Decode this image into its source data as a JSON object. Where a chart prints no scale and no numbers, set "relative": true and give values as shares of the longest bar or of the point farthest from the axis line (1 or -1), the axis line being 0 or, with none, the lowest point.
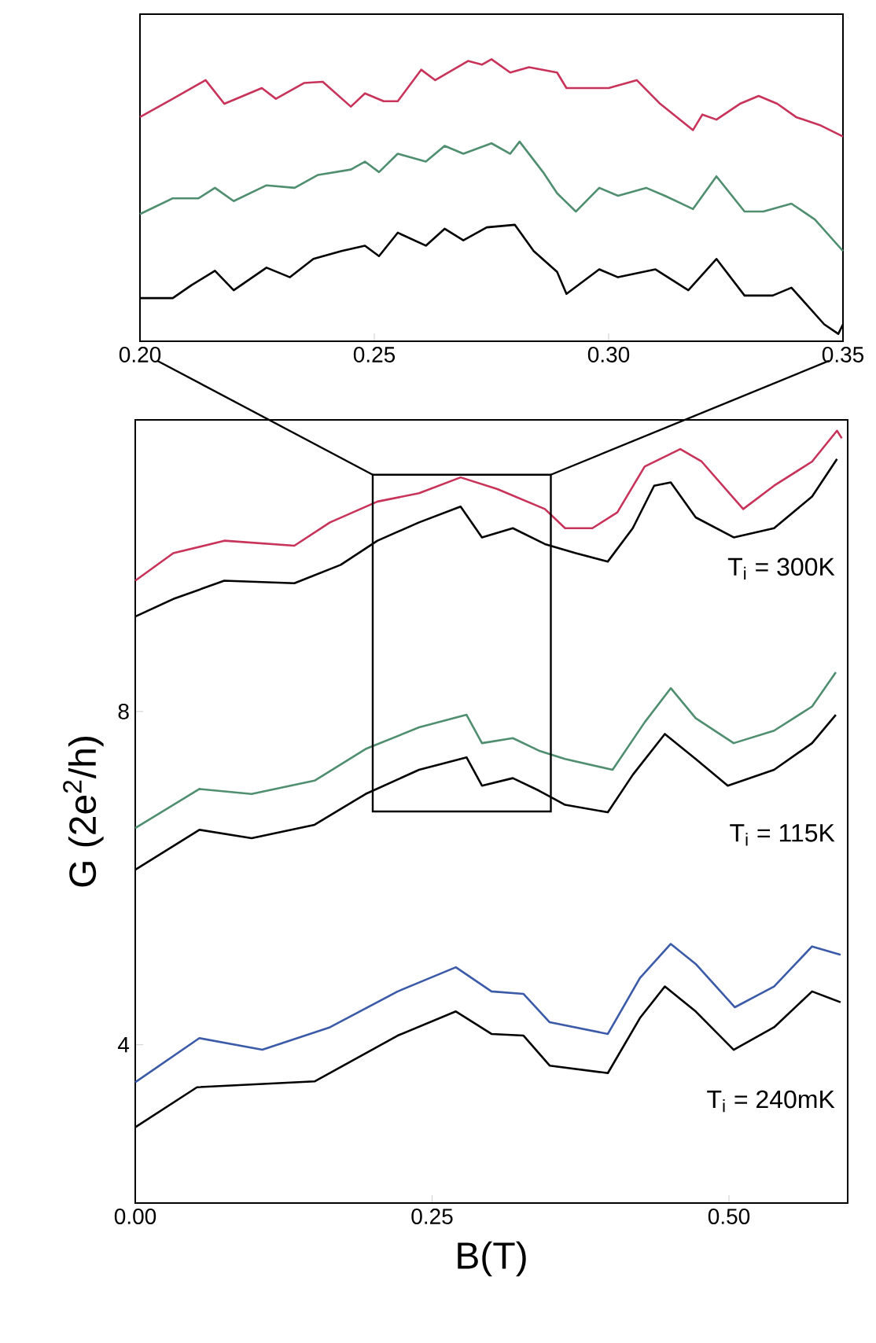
{
  "chart_data": [
    {
      "type": "line",
      "relative": true,
      "xlim": [
        0.2,
        0.35
      ],
      "xticks": [
        {
          "value": 0.2,
          "label": "0.20"
        },
        0.25,
        {
          "value": 0.3,
          "label": "0.30"
        },
        {
          "value": 0.35,
          "label": "0.35"
        }
      ],
      "series": [
        {
          "color": "#c8335a",
          "x": [
            0.2,
            0.207,
            0.214,
            0.218,
            0.226,
            0.229,
            0.235,
            0.239,
            0.245,
            0.248,
            0.252,
            0.255,
            0.26,
            0.263,
            0.27,
            0.273,
            0.275,
            0.279,
            0.283,
            0.289,
            0.291,
            0.295,
            0.3,
            0.306,
            0.311,
            0.318,
            0.32,
            0.323,
            0.328,
            0.332,
            0.336,
            0.34,
            0.345,
            0.35
          ],
          "values": [
            0.795,
            0.86,
            0.926,
            0.842,
            0.898,
            0.86,
            0.916,
            0.92,
            0.832,
            0.879,
            0.851,
            0.851,
            0.963,
            0.926,
            0.994,
            0.981,
            1.0,
            0.953,
            0.972,
            0.953,
            0.898,
            0.898,
            0.898,
            0.926,
            0.842,
            0.749,
            0.804,
            0.786,
            0.842,
            0.87,
            0.842,
            0.795,
            0.767,
            0.726
          ]
        },
        {
          "color": "#4f8f6f",
          "x": [
            0.2,
            0.207,
            0.2125,
            0.216,
            0.22,
            0.227,
            0.233,
            0.238,
            0.245,
            0.248,
            0.251,
            0.255,
            0.261,
            0.265,
            0.269,
            0.275,
            0.279,
            0.281,
            0.286,
            0.289,
            0.293,
            0.298,
            0.302,
            0.308,
            0.312,
            0.318,
            0.323,
            0.329,
            0.333,
            0.339,
            0.344,
            0.35
          ],
          "values": [
            0.451,
            0.507,
            0.507,
            0.544,
            0.497,
            0.553,
            0.544,
            0.59,
            0.609,
            0.637,
            0.6,
            0.665,
            0.637,
            0.693,
            0.665,
            0.702,
            0.665,
            0.708,
            0.6,
            0.525,
            0.46,
            0.544,
            0.516,
            0.544,
            0.516,
            0.469,
            0.585,
            0.46,
            0.46,
            0.488,
            0.432,
            0.32
          ]
        },
        {
          "color": "#000000",
          "x": [
            0.2,
            0.207,
            0.211,
            0.216,
            0.22,
            0.227,
            0.232,
            0.237,
            0.243,
            0.248,
            0.251,
            0.255,
            0.261,
            0.265,
            0.269,
            0.274,
            0.28,
            0.284,
            0.289,
            0.291,
            0.298,
            0.302,
            0.31,
            0.317,
            0.323,
            0.329,
            0.335,
            0.339,
            0.346,
            0.349,
            0.35
          ],
          "values": [
            0.153,
            0.153,
            0.199,
            0.25,
            0.181,
            0.261,
            0.227,
            0.292,
            0.32,
            0.339,
            0.302,
            0.385,
            0.339,
            0.399,
            0.358,
            0.404,
            0.413,
            0.32,
            0.246,
            0.168,
            0.255,
            0.227,
            0.255,
            0.181,
            0.292,
            0.162,
            0.162,
            0.19,
            0.06,
            0.026,
            0.06
          ]
        }
      ]
    },
    {
      "type": "line",
      "xlabel": "B(T)",
      "ylabel": "G (2e$^{2}$/h)",
      "xlim": [
        0,
        0.6
      ],
      "ylim": [
        2.1,
        11.5
      ],
      "xticks": [
        {
          "value": 0,
          "label": "0.00"
        },
        0.25,
        {
          "value": 0.5,
          "label": "0.50"
        }
      ],
      "yticks": [
        4,
        8
      ],
      "annotations": [
        "T$_{i}$ = 300K",
        "T$_{i}$ = 115K",
        "T$_{i}$ = 240mK"
      ],
      "series": [
        {
          "color": "#c8335a",
          "x": [
            0.0,
            0.032,
            0.075,
            0.134,
            0.164,
            0.204,
            0.239,
            0.274,
            0.305,
            0.345,
            0.362,
            0.385,
            0.406,
            0.429,
            0.459,
            0.477,
            0.512,
            0.538,
            0.57,
            0.591,
            0.595
          ],
          "values": [
            9.57,
            9.9,
            10.05,
            9.99,
            10.27,
            10.52,
            10.62,
            10.81,
            10.67,
            10.43,
            10.2,
            10.2,
            10.39,
            10.94,
            11.15,
            11.0,
            10.43,
            10.71,
            11.0,
            11.37,
            11.28
          ]
        },
        {
          "color": "#000000",
          "x": [
            0.0,
            0.032,
            0.075,
            0.134,
            0.173,
            0.204,
            0.239,
            0.274,
            0.292,
            0.318,
            0.345,
            0.371,
            0.398,
            0.419,
            0.437,
            0.451,
            0.472,
            0.504,
            0.538,
            0.57,
            0.591
          ],
          "values": [
            9.14,
            9.35,
            9.57,
            9.54,
            9.76,
            10.05,
            10.27,
            10.46,
            10.09,
            10.2,
            10.01,
            9.9,
            9.8,
            10.2,
            10.71,
            10.75,
            10.33,
            10.09,
            10.2,
            10.58,
            11.03
          ]
        },
        {
          "color": "#4f8f6f",
          "x": [
            0.0,
            0.054,
            0.098,
            0.151,
            0.194,
            0.239,
            0.279,
            0.292,
            0.318,
            0.34,
            0.362,
            0.402,
            0.429,
            0.451,
            0.472,
            0.504,
            0.538,
            0.57,
            0.59
          ],
          "values": [
            6.6,
            7.07,
            7.01,
            7.17,
            7.55,
            7.81,
            7.96,
            7.62,
            7.68,
            7.53,
            7.43,
            7.3,
            7.87,
            8.28,
            7.92,
            7.62,
            7.77,
            8.06,
            8.47
          ]
        },
        {
          "color": "#000000",
          "x": [
            0.0,
            0.054,
            0.098,
            0.151,
            0.194,
            0.239,
            0.279,
            0.292,
            0.318,
            0.34,
            0.362,
            0.398,
            0.419,
            0.446,
            0.472,
            0.499,
            0.538,
            0.57,
            0.59
          ],
          "values": [
            6.1,
            6.58,
            6.48,
            6.64,
            7.01,
            7.3,
            7.45,
            7.11,
            7.2,
            7.05,
            6.88,
            6.79,
            7.24,
            7.73,
            7.43,
            7.11,
            7.3,
            7.62,
            7.96
          ]
        },
        {
          "color": "#3b5aa8",
          "x": [
            0.0,
            0.054,
            0.107,
            0.164,
            0.221,
            0.27,
            0.3,
            0.327,
            0.349,
            0.398,
            0.425,
            0.451,
            0.472,
            0.505,
            0.538,
            0.57,
            0.594
          ],
          "values": [
            3.55,
            4.08,
            3.94,
            4.21,
            4.64,
            4.93,
            4.64,
            4.61,
            4.27,
            4.13,
            4.8,
            5.21,
            4.97,
            4.45,
            4.7,
            5.18,
            5.08
          ]
        },
        {
          "color": "#000000",
          "x": [
            0.0,
            0.052,
            0.151,
            0.221,
            0.27,
            0.3,
            0.327,
            0.349,
            0.398,
            0.425,
            0.446,
            0.472,
            0.504,
            0.538,
            0.57,
            0.594
          ],
          "values": [
            3.01,
            3.49,
            3.56,
            4.11,
            4.4,
            4.13,
            4.11,
            3.75,
            3.66,
            4.32,
            4.7,
            4.4,
            3.94,
            4.21,
            4.64,
            4.51
          ]
        }
      ]
    }
  ]
}
